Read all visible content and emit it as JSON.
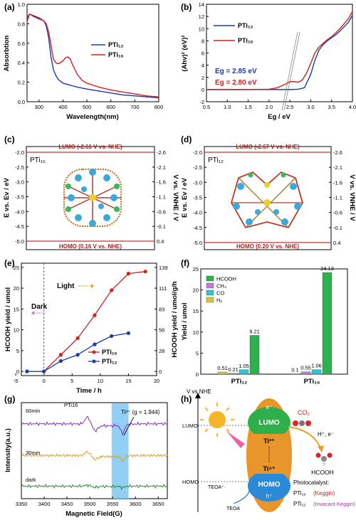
{
  "chart_data": [
    {
      "panel": "(a)",
      "type": "line",
      "xlabel": "Wavelength(nm)",
      "ylabel": "Absorbtion",
      "xlim": [
        250,
        800
      ],
      "ylim": [
        0.0,
        1.0
      ],
      "xticks": [
        "300",
        "400",
        "500",
        "600",
        "700",
        "800"
      ],
      "yticks": [
        "0.0",
        "0.2",
        "0.4",
        "0.6",
        "0.8",
        "1.0"
      ],
      "legend": "top-right",
      "series": [
        {
          "name": "PTi₁₂",
          "color": "#1f3aa8",
          "x": [
            250,
            260,
            280,
            300,
            320,
            330,
            340,
            350,
            360,
            370,
            380,
            400,
            430,
            460,
            500,
            550,
            600,
            650,
            700,
            750,
            800
          ],
          "y": [
            0.86,
            0.9,
            0.88,
            0.86,
            0.83,
            0.78,
            0.66,
            0.46,
            0.33,
            0.27,
            0.23,
            0.19,
            0.17,
            0.15,
            0.13,
            0.11,
            0.09,
            0.07,
            0.06,
            0.05,
            0.04
          ]
        },
        {
          "name": "PTi₁₆",
          "color": "#d02020",
          "x": [
            250,
            260,
            280,
            300,
            320,
            330,
            340,
            350,
            360,
            370,
            380,
            390,
            400,
            410,
            420,
            430,
            440,
            460,
            480,
            500,
            550,
            600,
            650,
            700,
            750,
            800
          ],
          "y": [
            0.82,
            0.9,
            0.87,
            0.85,
            0.83,
            0.8,
            0.72,
            0.58,
            0.44,
            0.4,
            0.39,
            0.4,
            0.42,
            0.45,
            0.46,
            0.44,
            0.38,
            0.28,
            0.22,
            0.19,
            0.15,
            0.12,
            0.1,
            0.08,
            0.06,
            0.05
          ]
        }
      ]
    },
    {
      "panel": "(b)",
      "type": "line",
      "xlabel": "Eg / eV",
      "ylabel": "(Ahv)² (eV)²",
      "xlim": [
        0.5,
        4.0
      ],
      "ylim": [
        -2,
        14
      ],
      "xticks": [
        "0.5",
        "1.0",
        "1.5",
        "2.0",
        "2.5",
        "3.0",
        "3.5",
        "4.0"
      ],
      "yticks": [
        "-2",
        "0",
        "2",
        "4",
        "6",
        "8",
        "10",
        "12",
        "14"
      ],
      "legend": "top-left",
      "annotations": [
        {
          "text": "Eg = 2.85 eV",
          "color": "#1f3aa8"
        },
        {
          "text": "Eg = 2.80 eV",
          "color": "#d02020"
        }
      ],
      "series": [
        {
          "name": "PTi₁₂",
          "color": "#1f3aa8",
          "x": [
            0.5,
            1.0,
            1.5,
            2.0,
            2.5,
            2.7,
            2.85,
            3.0,
            3.1,
            3.2,
            3.3,
            3.4,
            3.5,
            3.6,
            3.7,
            3.8,
            3.9,
            4.0
          ],
          "y": [
            0,
            0,
            0,
            0,
            0,
            0.05,
            0.3,
            2.5,
            4.8,
            6.5,
            7.4,
            8.0,
            8.5,
            9.0,
            9.6,
            10.3,
            11.0,
            12.2
          ]
        },
        {
          "name": "PTi₁₆",
          "color": "#d02020",
          "x": [
            0.5,
            1.0,
            1.5,
            2.0,
            2.2,
            2.4,
            2.5,
            2.6,
            2.7,
            2.8,
            2.9,
            3.0,
            3.1,
            3.2,
            3.3,
            3.4,
            3.5,
            3.6,
            3.7,
            3.8,
            3.9,
            4.0
          ],
          "y": [
            0,
            0,
            0,
            0.05,
            0.3,
            0.9,
            1.3,
            1.3,
            1.2,
            1.6,
            2.7,
            4.3,
            6.0,
            7.0,
            7.6,
            8.2,
            8.7,
            9.3,
            10.0,
            10.8,
            11.6,
            12.8
          ]
        }
      ]
    },
    {
      "panel": "(c)",
      "type": "diagram",
      "title": "PTi₁₆",
      "ylabel_left": "E vs. Ev / eV",
      "ylabel_right": "V vs. VNHE / V",
      "lumo_label": "LUMO (-2.61 V vs. NHE)",
      "homo_label": "HOMO (0.16 V vs. NHE)",
      "ylim": [
        -5.0,
        -2.0
      ],
      "left_ticks": [
        "-2.0",
        "-2.5",
        "-3.0",
        "-3.5",
        "-4.0",
        "-4.5",
        "-5.0"
      ],
      "right_ticks": [
        "-2.6",
        "-2.1",
        "-1.6",
        "-1.1",
        "-0.6",
        "-0.1",
        "0.4"
      ]
    },
    {
      "panel": "(d)",
      "type": "diagram",
      "title": "PTi₁₂",
      "ylabel_left": "E vs. Ev / eV",
      "ylabel_right": "V vs. VNHE / V",
      "lumo_label": "LUMO (-2.67 V vs. NHE)",
      "homo_label": "HOMO (0.20 V vs. NHE)",
      "ylim": [
        -5.0,
        -2.0
      ],
      "left_ticks": [
        "-2.0",
        "-2.5",
        "-3.0",
        "-3.5",
        "-4.0",
        "-4.5",
        "-5.0"
      ],
      "right_ticks": [
        "-2.6",
        "-2.1",
        "-1.6",
        "-1.1",
        "-0.6",
        "-0.1",
        "0.4"
      ]
    },
    {
      "panel": "(e)",
      "type": "line",
      "xlabel": "Time / h",
      "ylabel": "HCOOH yield / umol",
      "ylabel_right": "HCOOH yield / umol/g/h",
      "xlim": [
        -4,
        20
      ],
      "ylim": [
        -1,
        26
      ],
      "xticks": [
        "-5",
        "0",
        "5",
        "10",
        "15",
        "20"
      ],
      "yticks": [
        "0",
        "5",
        "10",
        "15",
        "20",
        "25"
      ],
      "right_ticks": [
        "0",
        "28",
        "56",
        "83",
        "111",
        "139"
      ],
      "dark_label": "Dark",
      "light_label": "Light",
      "legend": "bottom-right",
      "series": [
        {
          "name": "PTi₁₆",
          "color": "#d02020",
          "x": [
            -3,
            0,
            3,
            6,
            9,
            12,
            15,
            18
          ],
          "y": [
            0,
            0,
            4,
            8,
            13.5,
            19.5,
            23.5,
            24
          ]
        },
        {
          "name": "PTi₁₂",
          "color": "#1f3aa8",
          "x": [
            -3,
            0,
            3,
            6,
            9,
            12,
            15
          ],
          "y": [
            0,
            0,
            2.5,
            4,
            6.5,
            8.5,
            9.2
          ]
        }
      ]
    },
    {
      "panel": "(f)",
      "type": "bar",
      "ylabel": "Yield / umol",
      "ylim": [
        0,
        25
      ],
      "yticks": [
        "0",
        "5",
        "10",
        "15",
        "20",
        "25"
      ],
      "categories": [
        "PTi₁₂",
        "PTi₁₆"
      ],
      "legend": "top-left",
      "series": [
        {
          "name": "HCOOH",
          "color": "#2bb24c",
          "values": [
            9.21,
            24.13
          ],
          "labels": [
            "9.21",
            "24.13"
          ]
        },
        {
          "name": "CH₄",
          "color": "#c879d8",
          "values": [
            0.21,
            0.55
          ],
          "labels": [
            "0.21",
            "0.55"
          ]
        },
        {
          "name": "CO",
          "color": "#33c4d8",
          "values": [
            1.05,
            1.06
          ],
          "labels": [
            "1.05",
            "1.06"
          ]
        },
        {
          "name": "H₂",
          "color": "#e0c040",
          "values": [
            0.51,
            0.1
          ],
          "labels": [
            "0.51",
            "0.1"
          ]
        }
      ]
    },
    {
      "panel": "(g)",
      "type": "line",
      "xlabel": "Magnetic Field(G)",
      "ylabel": "Intensity(a.u.)",
      "xlim": [
        3350,
        3670
      ],
      "xticks": [
        "3350",
        "3400",
        "3450",
        "3500",
        "3550",
        "3600",
        "3650"
      ],
      "highlight_range": [
        3548,
        3585
      ],
      "annotation": "Ti³⁺ (g = 1.944)",
      "sample_label": "PTi16",
      "series": [
        {
          "name": "60min",
          "color": "#8a2bc8",
          "offset": 0.78
        },
        {
          "name": "30min",
          "color": "#d8a020",
          "offset": 0.45
        },
        {
          "name": "dark",
          "color": "#2e8b2e",
          "offset": 0.13
        }
      ]
    },
    {
      "panel": "(h)",
      "type": "diagram",
      "vs_label": "V vs.NHE",
      "lumo_axis": "LUMO",
      "homo_axis": "HOMO",
      "lumo": "LUMO",
      "homo": "HOMO",
      "electron": "e⁻",
      "hole": "h⁺",
      "ti3": "Ti³⁺",
      "ti4": "Ti⁴⁺",
      "co2": "CO₂",
      "h_e": "H⁺, e⁻",
      "hcooh": "HCOOH",
      "teoa_plus": "TEOA⁺·",
      "teoa": "TEOA",
      "photocatalyst": "Photocatalyst:",
      "pti16": "PTi₁₆",
      "pti16_desc": "(Keggin)",
      "pti12": "PTi₁₂",
      "pti12_desc": "(Invacant Keggin)"
    }
  ]
}
